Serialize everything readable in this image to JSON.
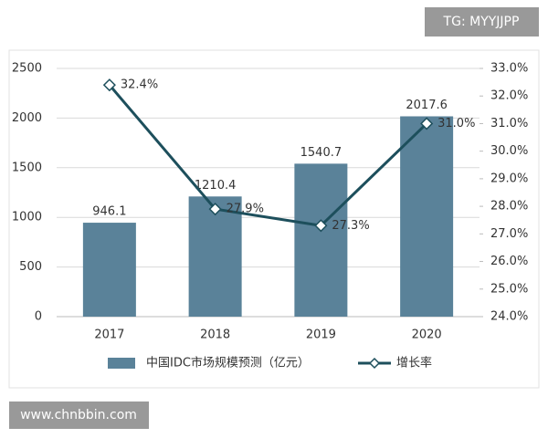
{
  "watermarks": [
    "TG: MYYJJPP",
    "www.chnbbin.com"
  ],
  "chart_data": {
    "type": "bar",
    "categories": [
      "2017",
      "2018",
      "2019",
      "2020"
    ],
    "series": [
      {
        "name": "中国IDC市场规模预测（亿元）",
        "type": "bar",
        "color": "#5a8299",
        "values": [
          946.1,
          1210.4,
          1540.7,
          2017.6
        ]
      },
      {
        "name": "增长率",
        "type": "line",
        "axis": "y2",
        "color": "#1d4f5c",
        "values": [
          32.4,
          27.9,
          27.3,
          31.0
        ],
        "value_labels": [
          "32.4%",
          "27.9%",
          "27.3%",
          "31.0%"
        ]
      }
    ],
    "ylim": [
      0,
      2500
    ],
    "yticks": [
      0,
      500,
      1000,
      1500,
      2000,
      2500
    ],
    "y2lim": [
      24,
      33
    ],
    "y2ticks": [
      {
        "value": 24,
        "label": "24.0%"
      },
      {
        "value": 25,
        "label": "25.0%"
      },
      {
        "value": 26,
        "label": "26.0%"
      },
      {
        "value": 27,
        "label": "27.0%"
      },
      {
        "value": 28,
        "label": "28.0%"
      },
      {
        "value": 29,
        "label": "29.0%"
      },
      {
        "value": 30,
        "label": "30.0%"
      },
      {
        "value": 31,
        "label": "31.0%"
      },
      {
        "value": 32,
        "label": "32.0%"
      },
      {
        "value": 33,
        "label": "33.0%"
      }
    ],
    "grid": true,
    "legend": "bottom"
  }
}
